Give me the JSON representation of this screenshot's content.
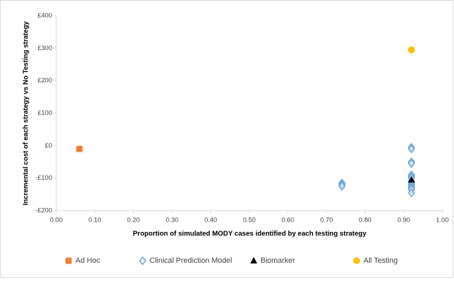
{
  "chart_data": {
    "type": "scatter",
    "x_label": "Proportion of simulated MODY cases identified by each testing strategy",
    "y_label": "Incremental cost of each strategy vs No Testing strategy",
    "xlim": [
      0,
      1
    ],
    "ylim": [
      -200,
      400
    ],
    "xticks": [
      {
        "value": 0,
        "label": "0.00"
      },
      {
        "value": 0.1,
        "label": "0.10"
      },
      {
        "value": 0.2,
        "label": "0.20"
      },
      {
        "value": 0.3,
        "label": "0.30"
      },
      {
        "value": 0.4,
        "label": "0.40"
      },
      {
        "value": 0.5,
        "label": "0.50"
      },
      {
        "value": 0.6,
        "label": "0.60"
      },
      {
        "value": 0.7,
        "label": "0.70"
      },
      {
        "value": 0.8,
        "label": "0.80"
      },
      {
        "value": 0.9,
        "label": "0.90"
      },
      {
        "value": 1,
        "label": "1.00"
      }
    ],
    "yticks": [
      {
        "value": -200,
        "label": "-£200"
      },
      {
        "value": -100,
        "label": "-£100"
      },
      {
        "value": 0,
        "label": "£0"
      },
      {
        "value": 100,
        "label": "£100"
      },
      {
        "value": 200,
        "label": "£200"
      },
      {
        "value": 300,
        "label": "£300"
      },
      {
        "value": 400,
        "label": "£400"
      }
    ],
    "legend": "bottom",
    "series": [
      {
        "name": "Ad Hoc",
        "color": "#ed7d31",
        "marker": "square",
        "x": [
          0.06
        ],
        "values": [
          -10
        ]
      },
      {
        "name": "Clinical Prediction Model",
        "color": "#5b9bd5",
        "marker": "diamond",
        "x": [
          0.74,
          0.74,
          0.74,
          0.92,
          0.92,
          0.92,
          0.92,
          0.92,
          0.92,
          0.92,
          0.92,
          0.92,
          0.92,
          0.92,
          0.92,
          0.92,
          0.92
        ],
        "values": [
          -115,
          -120,
          -125,
          -5,
          -10,
          -50,
          -55,
          -90,
          -95,
          -100,
          -110,
          -115,
          -120,
          -125,
          -130,
          -135,
          -145
        ]
      },
      {
        "name": "Biomarker",
        "color": "#000000",
        "marker": "triangle",
        "x": [
          0.92
        ],
        "values": [
          -105
        ]
      },
      {
        "name": "All Testing",
        "color": "#ffc000",
        "marker": "circle",
        "x": [
          0.92
        ],
        "values": [
          295
        ]
      }
    ]
  }
}
